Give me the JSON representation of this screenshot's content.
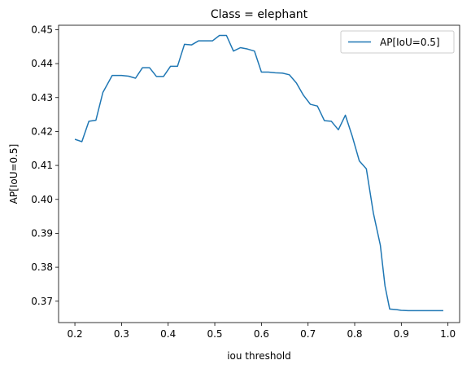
{
  "chart_data": {
    "type": "line",
    "title": "Class = elephant",
    "xlabel": "iou threshold",
    "ylabel": "AP[IoU=0.5]",
    "xlim": [
      0.165,
      1.025
    ],
    "ylim": [
      0.3637,
      0.4513
    ],
    "xticks": [
      0.2,
      0.3,
      0.4,
      0.5,
      0.6,
      0.7,
      0.8,
      0.9,
      1.0
    ],
    "xtick_labels": [
      "0.2",
      "0.3",
      "0.4",
      "0.5",
      "0.6",
      "0.7",
      "0.8",
      "0.9",
      "1.0"
    ],
    "yticks": [
      0.37,
      0.38,
      0.39,
      0.4,
      0.41,
      0.42,
      0.43,
      0.44,
      0.45
    ],
    "ytick_labels": [
      "0.37",
      "0.38",
      "0.39",
      "0.40",
      "0.41",
      "0.42",
      "0.43",
      "0.44",
      "0.45"
    ],
    "legend_position": "top-right",
    "grid": false,
    "series": [
      {
        "name": "AP[IoU=0.5]",
        "color": "#1f77b4",
        "x": [
          0.2,
          0.215,
          0.23,
          0.245,
          0.26,
          0.28,
          0.3,
          0.315,
          0.33,
          0.345,
          0.36,
          0.375,
          0.39,
          0.405,
          0.42,
          0.435,
          0.45,
          0.465,
          0.48,
          0.495,
          0.51,
          0.525,
          0.54,
          0.555,
          0.57,
          0.585,
          0.6,
          0.615,
          0.63,
          0.645,
          0.66,
          0.675,
          0.69,
          0.705,
          0.72,
          0.735,
          0.75,
          0.765,
          0.78,
          0.795,
          0.81,
          0.825,
          0.84,
          0.855,
          0.865,
          0.875,
          0.89,
          0.9,
          0.915,
          0.93,
          0.945,
          0.96,
          0.975,
          0.99
        ],
        "y": [
          0.4177,
          0.417,
          0.423,
          0.4233,
          0.4315,
          0.4365,
          0.4365,
          0.4363,
          0.4357,
          0.4388,
          0.4388,
          0.4362,
          0.4362,
          0.4392,
          0.4392,
          0.4457,
          0.4455,
          0.4467,
          0.4467,
          0.4467,
          0.4483,
          0.4483,
          0.4437,
          0.4447,
          0.4443,
          0.4437,
          0.4375,
          0.4375,
          0.4373,
          0.4372,
          0.4367,
          0.4343,
          0.4307,
          0.428,
          0.4275,
          0.4232,
          0.423,
          0.4205,
          0.4248,
          0.4185,
          0.4113,
          0.409,
          0.396,
          0.3865,
          0.3745,
          0.3677,
          0.3675,
          0.3673,
          0.3672,
          0.3672,
          0.3672,
          0.3672,
          0.3672,
          0.3672
        ]
      }
    ]
  }
}
